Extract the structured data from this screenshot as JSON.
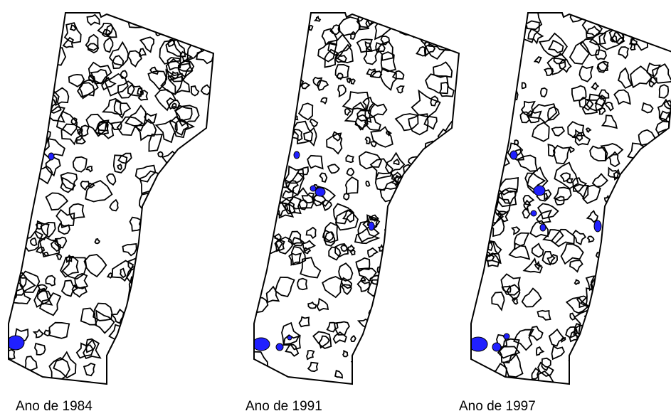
{
  "panels": [
    {
      "caption": "Ano de 1984"
    },
    {
      "caption": "Ano de 1991"
    },
    {
      "caption": "Ano de 1997"
    }
  ]
}
